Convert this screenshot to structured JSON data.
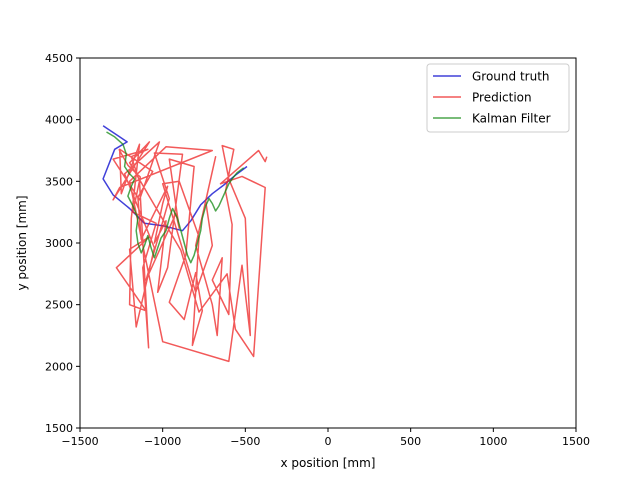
{
  "chart_data": {
    "type": "line",
    "title": "",
    "xlabel": "x position [mm]",
    "ylabel": "y position [mm]",
    "xlim": [
      -1500,
      1500
    ],
    "ylim": [
      1500,
      4500
    ],
    "xticks": [
      -1500,
      -1000,
      -500,
      0,
      500,
      1000,
      1500
    ],
    "yticks": [
      1500,
      2000,
      2500,
      3000,
      3500,
      4000,
      4500
    ],
    "xtick_labels": [
      "−1500",
      "−1000",
      "−500",
      "0",
      "500",
      "1000",
      "1500"
    ],
    "ytick_labels": [
      "1500",
      "2000",
      "2500",
      "3000",
      "3500",
      "4000",
      "4500"
    ],
    "grid": false,
    "legend_position": "top-right",
    "series": [
      {
        "name": "Ground truth",
        "color": "#0000cc",
        "points": [
          [
            -1360,
            3950
          ],
          [
            -1260,
            3860
          ],
          [
            -1215,
            3820
          ],
          [
            -1290,
            3760
          ],
          [
            -1360,
            3520
          ],
          [
            -1300,
            3390
          ],
          [
            -1200,
            3280
          ],
          [
            -1110,
            3160
          ],
          [
            -1000,
            3140
          ],
          [
            -880,
            3100
          ],
          [
            -830,
            3180
          ],
          [
            -770,
            3310
          ],
          [
            -700,
            3400
          ],
          [
            -630,
            3470
          ],
          [
            -560,
            3550
          ],
          [
            -490,
            3620
          ]
        ]
      },
      {
        "name": "Prediction",
        "color": "#ee2222",
        "points": [
          [
            -1265,
            3760
          ],
          [
            -1210,
            3630
          ],
          [
            -1135,
            3535
          ],
          [
            -1180,
            3250
          ],
          [
            -1040,
            3160
          ],
          [
            -1120,
            2800
          ],
          [
            -1085,
            2150
          ],
          [
            -1140,
            3500
          ],
          [
            -1190,
            3700
          ],
          [
            -1090,
            3760
          ],
          [
            -1300,
            3680
          ],
          [
            -1140,
            3350
          ],
          [
            -1020,
            3820
          ],
          [
            -1230,
            3560
          ],
          [
            -1050,
            2960
          ],
          [
            -1160,
            2320
          ],
          [
            -1200,
            2950
          ],
          [
            -1080,
            3050
          ],
          [
            -1200,
            2900
          ],
          [
            -1280,
            2800
          ],
          [
            -1100,
            2450
          ],
          [
            -1200,
            2500
          ],
          [
            -1190,
            3200
          ],
          [
            -1140,
            3800
          ],
          [
            -1250,
            3400
          ],
          [
            -1260,
            3760
          ],
          [
            -1060,
            3580
          ],
          [
            -1150,
            3370
          ],
          [
            -1130,
            3030
          ],
          [
            -970,
            3460
          ],
          [
            -1000,
            3320
          ],
          [
            -1050,
            3000
          ],
          [
            -980,
            3180
          ],
          [
            -1030,
            2600
          ],
          [
            -970,
            2800
          ],
          [
            -880,
            3720
          ],
          [
            -1050,
            3730
          ],
          [
            -960,
            3360
          ],
          [
            -1100,
            2700
          ],
          [
            -920,
            3240
          ],
          [
            -900,
            3120
          ],
          [
            -960,
            3680
          ],
          [
            -810,
            3620
          ],
          [
            -860,
            2900
          ],
          [
            -900,
            2750
          ],
          [
            -960,
            2520
          ],
          [
            -870,
            2380
          ],
          [
            -800,
            2760
          ],
          [
            -760,
            2450
          ],
          [
            -820,
            2170
          ],
          [
            -780,
            3050
          ],
          [
            -900,
            3500
          ],
          [
            -1000,
            3480
          ],
          [
            -800,
            2600
          ],
          [
            -700,
            2980
          ],
          [
            -740,
            3340
          ],
          [
            -680,
            3700
          ],
          [
            -800,
            2980
          ],
          [
            -700,
            2500
          ],
          [
            -670,
            2250
          ],
          [
            -640,
            2880
          ],
          [
            -700,
            2700
          ],
          [
            -600,
            2420
          ],
          [
            -580,
            3150
          ],
          [
            -620,
            3420
          ],
          [
            -570,
            3760
          ],
          [
            -640,
            3790
          ],
          [
            -600,
            3520
          ],
          [
            -500,
            3200
          ],
          [
            -470,
            2250
          ],
          [
            -520,
            2820
          ],
          [
            -600,
            2040
          ],
          [
            -1000,
            2200
          ],
          [
            -1200,
            3500
          ],
          [
            -980,
            3780
          ],
          [
            -700,
            3750
          ],
          [
            -1260,
            3450
          ],
          [
            -1300,
            3350
          ],
          [
            -1080,
            3820
          ],
          [
            -1200,
            3650
          ],
          [
            -890,
            2940
          ],
          [
            -780,
            2440
          ],
          [
            -610,
            2750
          ],
          [
            -560,
            2300
          ],
          [
            -500,
            2180
          ],
          [
            -450,
            2080
          ],
          [
            -380,
            3450
          ],
          [
            -520,
            3540
          ],
          [
            -650,
            3480
          ],
          [
            -420,
            3750
          ],
          [
            -380,
            3660
          ],
          [
            -370,
            3700
          ]
        ]
      },
      {
        "name": "Kalman Filter",
        "color": "#118811",
        "points": [
          [
            -1340,
            3900
          ],
          [
            -1290,
            3860
          ],
          [
            -1240,
            3800
          ],
          [
            -1220,
            3720
          ],
          [
            -1230,
            3620
          ],
          [
            -1200,
            3560
          ],
          [
            -1170,
            3520
          ],
          [
            -1190,
            3460
          ],
          [
            -1210,
            3380
          ],
          [
            -1180,
            3300
          ],
          [
            -1150,
            3200
          ],
          [
            -1160,
            3100
          ],
          [
            -1150,
            3000
          ],
          [
            -1130,
            2920
          ],
          [
            -1110,
            2980
          ],
          [
            -1090,
            3060
          ],
          [
            -1070,
            2960
          ],
          [
            -1050,
            2880
          ],
          [
            -1030,
            2960
          ],
          [
            -1010,
            3040
          ],
          [
            -980,
            3100
          ],
          [
            -960,
            3200
          ],
          [
            -940,
            3280
          ],
          [
            -910,
            3200
          ],
          [
            -890,
            3100
          ],
          [
            -870,
            3000
          ],
          [
            -850,
            2900
          ],
          [
            -830,
            2840
          ],
          [
            -810,
            2900
          ],
          [
            -790,
            3000
          ],
          [
            -770,
            3100
          ],
          [
            -760,
            3200
          ],
          [
            -740,
            3300
          ],
          [
            -720,
            3360
          ],
          [
            -700,
            3320
          ],
          [
            -680,
            3260
          ],
          [
            -660,
            3300
          ],
          [
            -640,
            3360
          ],
          [
            -620,
            3420
          ],
          [
            -600,
            3480
          ],
          [
            -580,
            3520
          ],
          [
            -550,
            3570
          ],
          [
            -510,
            3610
          ]
        ]
      }
    ]
  }
}
